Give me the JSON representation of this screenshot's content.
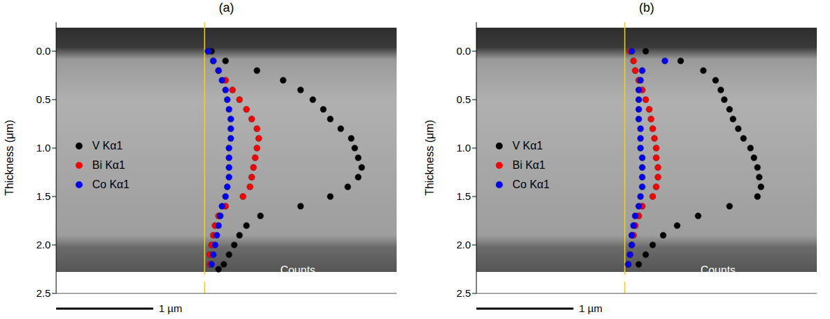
{
  "chart_data": [
    {
      "type": "scatter",
      "title": "(a)",
      "ylabel": "Thickness (μm)",
      "xlabel": "Counts",
      "scale_bar": "1 µm",
      "xlim": [
        -85,
        110
      ],
      "ylim": [
        2.5,
        -0.3
      ],
      "yticks": [
        {
          "value": 0,
          "label": "0.0"
        },
        0.5,
        {
          "value": 1,
          "label": "1.0"
        },
        1.5,
        {
          "value": 2,
          "label": "2.0"
        },
        2.5
      ],
      "tick_labels": "y",
      "grid": false,
      "legend": "left",
      "series": [
        {
          "name": "V Kα1",
          "color": "#000000",
          "x": [
            4,
            12,
            30,
            45,
            55,
            62,
            68,
            72,
            78,
            84,
            86,
            88,
            90,
            88,
            82,
            72,
            55,
            32,
            24,
            20,
            17,
            14,
            11,
            8
          ],
          "y": [
            0,
            0.1,
            0.2,
            0.3,
            0.4,
            0.5,
            0.6,
            0.7,
            0.8,
            0.9,
            1.0,
            1.1,
            1.2,
            1.3,
            1.4,
            1.5,
            1.6,
            1.7,
            1.8,
            1.9,
            2.0,
            2.1,
            2.2,
            2.25
          ]
        },
        {
          "name": "Bi Kα1",
          "color": "#ff0000",
          "x": [
            2,
            5,
            8,
            12,
            16,
            20,
            24,
            27,
            30,
            31,
            30,
            29,
            28,
            27,
            26,
            22,
            12,
            8,
            6,
            5,
            4,
            3,
            3
          ],
          "y": [
            0,
            0.1,
            0.2,
            0.3,
            0.4,
            0.5,
            0.6,
            0.7,
            0.8,
            0.9,
            1.0,
            1.1,
            1.2,
            1.3,
            1.4,
            1.5,
            1.6,
            1.7,
            1.8,
            1.9,
            2.0,
            2.1,
            2.2
          ]
        },
        {
          "name": "Co Kα1",
          "color": "#0000ff",
          "x": [
            2,
            5,
            8,
            10,
            12,
            13,
            14,
            15,
            15,
            15,
            14,
            14,
            14,
            14,
            13,
            12,
            10,
            9,
            8,
            7,
            6,
            5,
            4
          ],
          "y": [
            0,
            0.1,
            0.2,
            0.3,
            0.4,
            0.5,
            0.6,
            0.7,
            0.8,
            0.9,
            1.0,
            1.1,
            1.2,
            1.3,
            1.4,
            1.5,
            1.6,
            1.7,
            1.8,
            1.9,
            2.0,
            2.1,
            2.2
          ]
        }
      ]
    },
    {
      "type": "scatter",
      "title": "(b)",
      "ylabel": "Thickness (μm)",
      "xlabel": "Counts",
      "scale_bar": "1 µm",
      "xlim": [
        -85,
        110
      ],
      "ylim": [
        2.5,
        -0.3
      ],
      "yticks": [
        {
          "value": 0,
          "label": "0.0"
        },
        0.5,
        {
          "value": 1,
          "label": "1.0"
        },
        1.5,
        {
          "value": 2,
          "label": "2.0"
        },
        2.5
      ],
      "tick_labels": "y",
      "grid": false,
      "legend": "left",
      "series": [
        {
          "name": "V Kα1",
          "color": "#000000",
          "x": [
            12,
            32,
            45,
            52,
            55,
            57,
            60,
            62,
            65,
            68,
            72,
            74,
            76,
            77,
            78,
            76,
            60,
            42,
            30,
            22,
            16,
            12,
            8
          ],
          "y": [
            0,
            0.1,
            0.2,
            0.3,
            0.4,
            0.5,
            0.6,
            0.7,
            0.8,
            0.9,
            1.0,
            1.1,
            1.2,
            1.3,
            1.4,
            1.5,
            1.6,
            1.7,
            1.8,
            1.9,
            2.0,
            2.1,
            2.2
          ]
        },
        {
          "name": "Bi Kα1",
          "color": "#ff0000",
          "x": [
            3,
            5,
            6,
            8,
            10,
            12,
            14,
            15,
            16,
            17,
            18,
            18,
            19,
            19,
            18,
            16,
            10,
            8,
            6,
            5,
            4,
            3,
            2
          ],
          "y": [
            0,
            0.1,
            0.2,
            0.3,
            0.4,
            0.5,
            0.6,
            0.7,
            0.8,
            0.9,
            1.0,
            1.1,
            1.2,
            1.3,
            1.4,
            1.5,
            1.6,
            1.7,
            1.8,
            1.9,
            2.0,
            2.1,
            2.2
          ]
        },
        {
          "name": "Co Kα1",
          "color": "#0000ff",
          "x": [
            4,
            23,
            10,
            9,
            8,
            8,
            8,
            8,
            9,
            9,
            9,
            10,
            10,
            10,
            10,
            9,
            8,
            6,
            5,
            4,
            4,
            3,
            2
          ],
          "y": [
            0,
            0.1,
            0.2,
            0.3,
            0.4,
            0.5,
            0.6,
            0.7,
            0.8,
            0.9,
            1.0,
            1.1,
            1.2,
            1.3,
            1.4,
            1.5,
            1.6,
            1.7,
            1.8,
            1.9,
            2.0,
            2.1,
            2.2
          ]
        }
      ]
    }
  ]
}
